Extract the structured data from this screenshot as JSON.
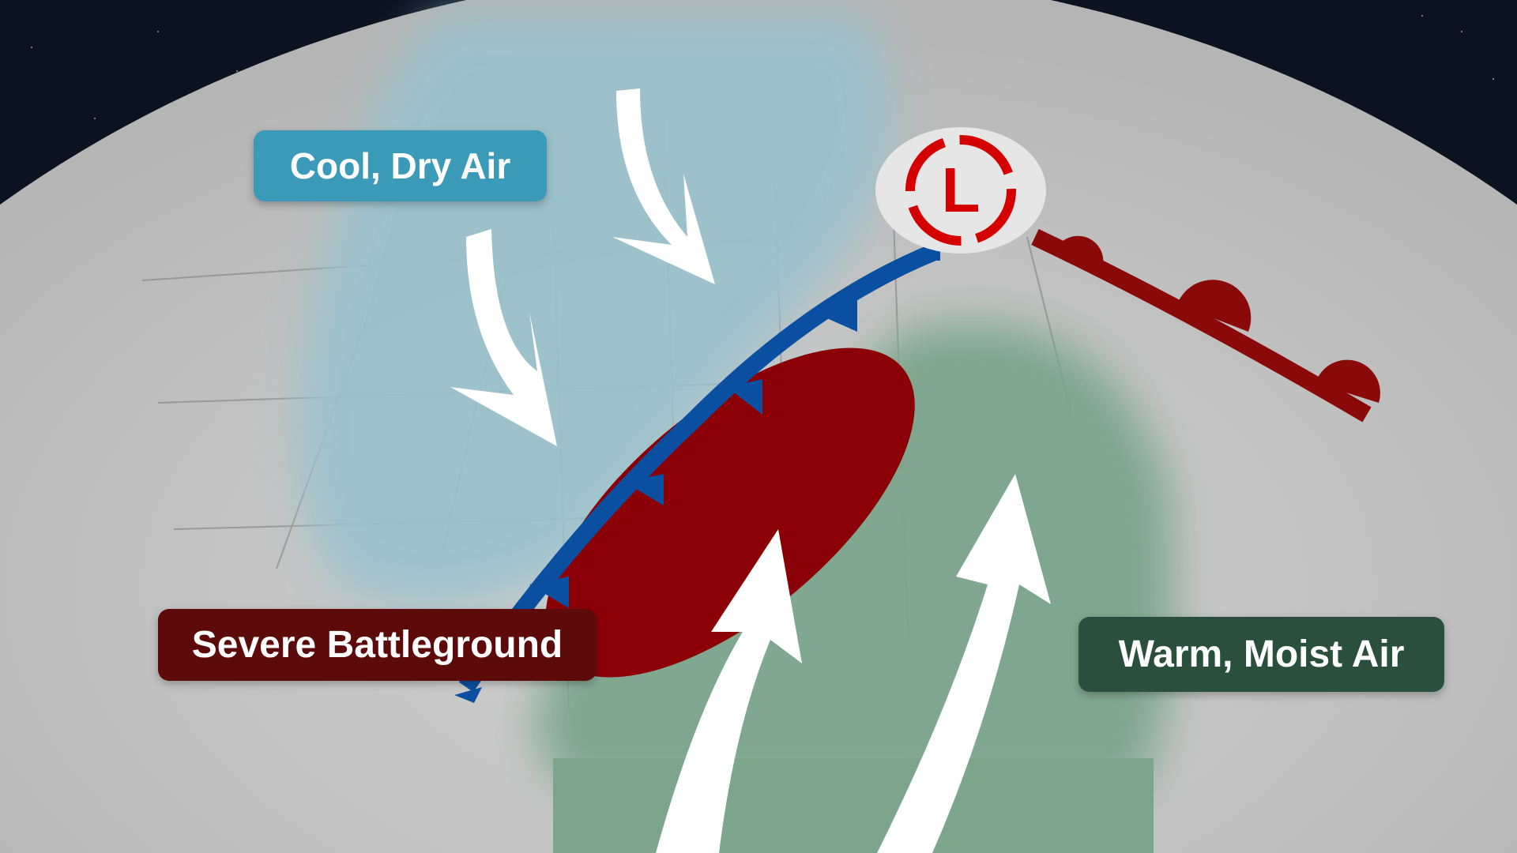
{
  "labels": {
    "cool_dry_air": "Cool, Dry Air",
    "severe_battleground": "Severe Battleground",
    "warm_moist_air": "Warm, Moist Air",
    "low_pressure": "L"
  },
  "colors": {
    "cool_air": "#3a9ab8",
    "cool_region": "#9bc2cc",
    "warm_air": "#2a4f3c",
    "warm_region": "#7ca58c",
    "severe": "#5c0a0a",
    "severe_region": "#8a0006",
    "cold_front": "#0a4fa0",
    "warm_front": "#8a0a0a",
    "low_symbol": "#d40000",
    "land": "#cfcfcf",
    "space": "#0b1220"
  },
  "symbols": [
    "low-pressure-center",
    "cold-front",
    "warm-front",
    "wind-arrow"
  ]
}
